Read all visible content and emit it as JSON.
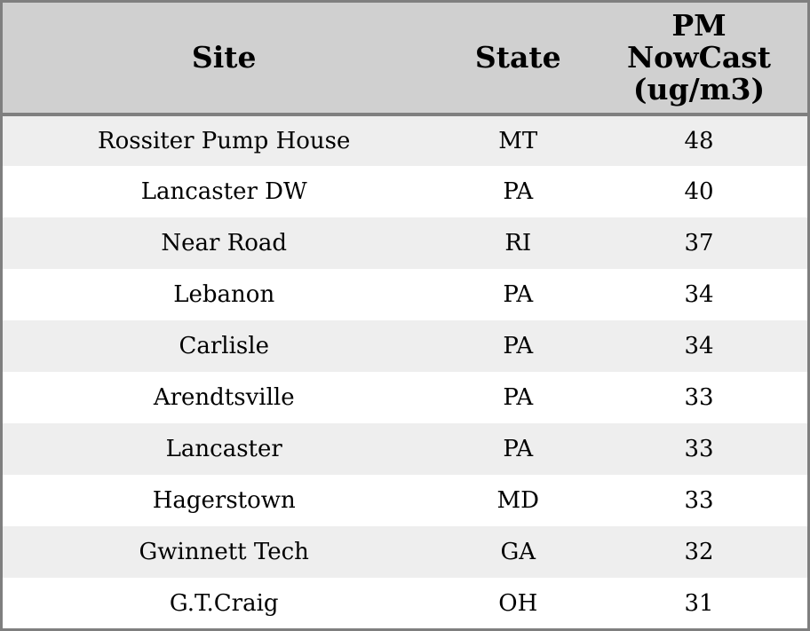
{
  "chart_data": {
    "type": "table",
    "title": "",
    "columns": [
      "Site",
      "State",
      "PM NowCast (ug/m3)"
    ],
    "rows": [
      [
        "Rossiter Pump House",
        "MT",
        48
      ],
      [
        "Lancaster DW",
        "PA",
        40
      ],
      [
        "Near Road",
        "RI",
        37
      ],
      [
        "Lebanon",
        "PA",
        34
      ],
      [
        "Carlisle",
        "PA",
        34
      ],
      [
        "Arendtsville",
        "PA",
        33
      ],
      [
        "Lancaster",
        "PA",
        33
      ],
      [
        "Hagerstown",
        "MD",
        33
      ],
      [
        "Gwinnett Tech",
        "GA",
        32
      ],
      [
        "G.T.Craig",
        "OH",
        31
      ]
    ]
  },
  "header": {
    "site": "Site",
    "state": "State",
    "pm": "PM\nNowCast\n(ug/m3)"
  },
  "colors": {
    "header_bg": "#d0d0d0",
    "row_alt_bg": "#eeeeee",
    "row_bg": "#ffffff",
    "border": "#7f7f7f",
    "text": "#000000"
  }
}
